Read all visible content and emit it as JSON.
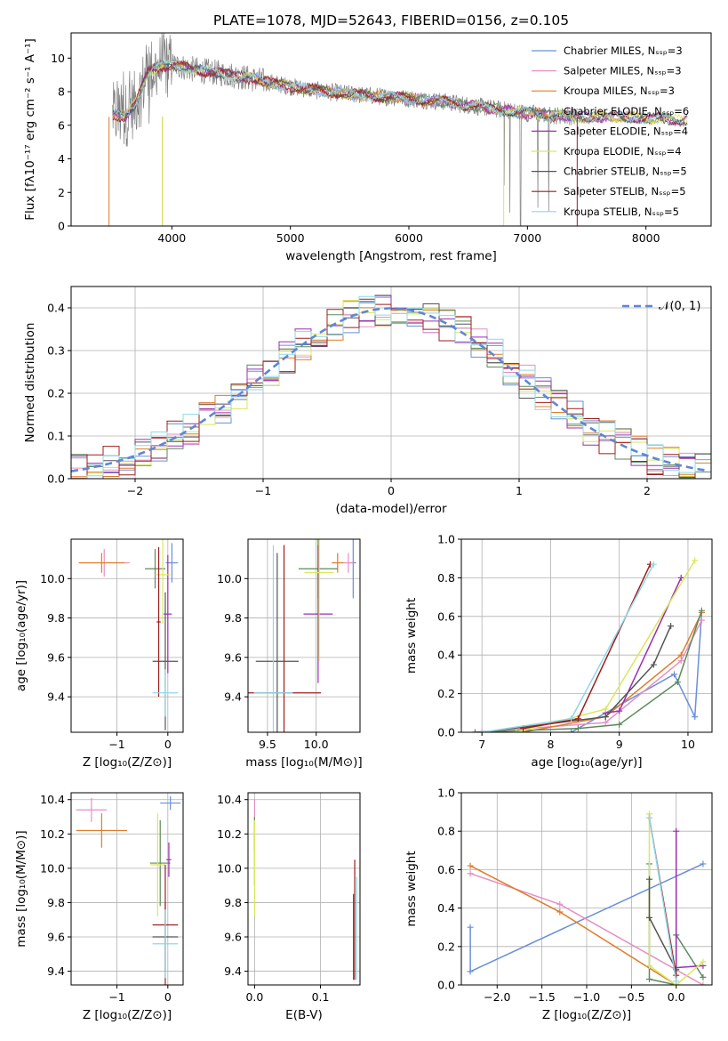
{
  "title": "PLATE=1078, MJD=52643, FIBERID=0156, z=0.105",
  "colors": {
    "chabrier_miles": "#6a8fd8",
    "salpeter_miles": "#e68fc4",
    "kroupa_miles": "#e07b28",
    "chabrier_elodie": "#5c8a5c",
    "salpeter_elodie": "#9b2fb0",
    "kroupa_elodie": "#d8e85a",
    "chabrier_stelib": "#555555",
    "salpeter_stelib": "#a01c1c",
    "kroupa_stelib": "#8ed8e6",
    "data_gray": "#808080"
  },
  "chart_data": [
    {
      "id": "spectrum",
      "type": "line",
      "xlabel": "wavelength [Angstrom, rest frame]",
      "ylabel": "Flux [fλ10⁻¹⁷ erg cm⁻² s⁻¹ A⁻¹]",
      "xlim": [
        3150,
        8550
      ],
      "ylim": [
        0,
        11.5
      ],
      "xticks": [
        4000,
        5000,
        6000,
        7000,
        8000
      ],
      "yticks": [
        0,
        2,
        4,
        6,
        8,
        10
      ],
      "legend_position": "upper-right",
      "legend": [
        "Chabrier MILES, Nₛₛₚ=3",
        "Salpeter MILES, Nₛₛₚ=3",
        "Kroupa MILES, Nₛₛₚ=3",
        "Chabrier ELODIE, Nₛₛₚ=6",
        "Salpeter ELODIE, Nₛₛₚ=4",
        "Kroupa ELODIE, Nₛₛₚ=4",
        "Chabrier STELIB, Nₛₛₚ=5",
        "Salpeter STELIB, Nₛₛₚ=5",
        "Kroupa STELIB, Nₛₛₚ=5"
      ],
      "continuum": {
        "x": [
          3500,
          3600,
          3700,
          3800,
          3900,
          4000,
          4200,
          4500,
          4800,
          5000,
          5300,
          5600,
          6000,
          6300,
          6600,
          6900,
          7200,
          7500,
          7800,
          8100,
          8350
        ],
        "y": [
          6.6,
          6.5,
          7.4,
          9.2,
          9.5,
          9.6,
          9.3,
          9.0,
          8.6,
          8.3,
          8.0,
          7.8,
          7.6,
          7.4,
          7.1,
          6.8,
          6.6,
          6.5,
          6.5,
          6.4,
          6.3
        ]
      }
    },
    {
      "id": "residuals",
      "type": "line",
      "xlabel": "(data-model)/error",
      "ylabel": "Normed distribution",
      "xlim": [
        -2.5,
        2.5
      ],
      "ylim": [
        0,
        0.45
      ],
      "xticks": [
        -2,
        -1,
        0,
        1,
        2
      ],
      "yticks": [
        0.0,
        0.1,
        0.2,
        0.3,
        0.4
      ],
      "legend_position": "upper-right",
      "legend": [
        "𝒩(0, 1)"
      ],
      "gaussian": {
        "mu": 0,
        "sigma": 1
      }
    },
    {
      "id": "age-vs-z",
      "type": "scatter",
      "xlabel": "Z [log₁₀(Z/Z⊙)]",
      "ylabel": "age  [log₁₀(age/yr)]",
      "xlim": [
        -1.9,
        0.3
      ],
      "ylim": [
        9.22,
        10.2
      ],
      "xticks": [
        -1,
        0
      ],
      "yticks": [
        9.4,
        9.6,
        9.8,
        10.0
      ],
      "points": [
        {
          "x": 0.08,
          "y": 10.08,
          "ex": 0.12,
          "ey": 0.1,
          "c": "chabrier_miles"
        },
        {
          "x": -1.25,
          "y": 10.08,
          "ex": 0.5,
          "ey": 0.07,
          "c": "salpeter_miles"
        },
        {
          "x": -1.3,
          "y": 10.08,
          "ex": 0.45,
          "ey": 0.05,
          "c": "kroupa_miles"
        },
        {
          "x": -0.25,
          "y": 10.05,
          "ex": 0.2,
          "ey": 0.1,
          "c": "chabrier_elodie"
        },
        {
          "x": 0.0,
          "y": 9.82,
          "ex": 0.08,
          "ey": 0.3,
          "c": "salpeter_elodie"
        },
        {
          "x": -0.1,
          "y": 10.02,
          "ex": 0.15,
          "ey": 0.25,
          "c": "kroupa_elodie"
        },
        {
          "x": -0.05,
          "y": 9.58,
          "ex": 0.25,
          "ey": 0.35,
          "c": "chabrier_stelib"
        },
        {
          "x": -0.18,
          "y": 9.78,
          "ex": 0.04,
          "ey": 0.38,
          "c": "salpeter_stelib"
        },
        {
          "x": -0.05,
          "y": 9.42,
          "ex": 0.25,
          "ey": 0.12,
          "c": "kroupa_stelib"
        }
      ]
    },
    {
      "id": "age-vs-mass",
      "type": "scatter",
      "xlabel": "mass [log₁₀(M/M⊙)]",
      "ylabel": "",
      "xlim": [
        9.3,
        10.45
      ],
      "ylim": [
        9.22,
        10.2
      ],
      "xticks": [
        9.5,
        10.0
      ],
      "yticks": [
        9.4,
        9.6,
        9.8,
        10.0
      ],
      "points": [
        {
          "x": 10.38,
          "y": 10.08,
          "ex": 0.03,
          "ey": 0.18,
          "c": "chabrier_miles"
        },
        {
          "x": 10.33,
          "y": 10.08,
          "ex": 0.05,
          "ey": 0.05,
          "c": "salpeter_miles"
        },
        {
          "x": 10.22,
          "y": 10.08,
          "ex": 0.06,
          "ey": 0.05,
          "c": "kroupa_miles"
        },
        {
          "x": 10.02,
          "y": 10.05,
          "ex": 0.2,
          "ey": 0.15,
          "c": "chabrier_elodie"
        },
        {
          "x": 10.02,
          "y": 9.82,
          "ex": 0.15,
          "ey": 0.35,
          "c": "salpeter_elodie"
        },
        {
          "x": 10.03,
          "y": 10.03,
          "ex": 0.15,
          "ey": 0.45,
          "c": "kroupa_elodie"
        },
        {
          "x": 9.6,
          "y": 9.58,
          "ex": 0.22,
          "ey": 0.55,
          "c": "chabrier_stelib"
        },
        {
          "x": 9.67,
          "y": 9.42,
          "ex": 0.38,
          "ey": 0.75,
          "c": "salpeter_stelib"
        },
        {
          "x": 9.56,
          "y": 9.42,
          "ex": 0.2,
          "ey": 0.75,
          "c": "kroupa_stelib"
        }
      ]
    },
    {
      "id": "weight-vs-age",
      "type": "line",
      "xlabel": "age  [log₁₀(age/yr)]",
      "ylabel": "mass weight",
      "xlim": [
        6.7,
        10.35
      ],
      "ylim": [
        0,
        1
      ],
      "xticks": [
        7,
        8,
        9,
        10
      ],
      "yticks": [
        0.0,
        0.2,
        0.4,
        0.6,
        0.8,
        1.0
      ],
      "series": [
        {
          "c": "chabrier_miles",
          "x": [
            8.3,
            9.8,
            10.1,
            10.2
          ],
          "y": [
            0.0,
            0.3,
            0.08,
            0.62
          ]
        },
        {
          "c": "salpeter_miles",
          "x": [
            6.9,
            8.8,
            9.9,
            10.2
          ],
          "y": [
            0.0,
            0.05,
            0.37,
            0.58
          ]
        },
        {
          "c": "kroupa_miles",
          "x": [
            7.6,
            8.8,
            9.9,
            10.2
          ],
          "y": [
            0.0,
            0.08,
            0.4,
            0.62
          ]
        },
        {
          "c": "chabrier_elodie",
          "x": [
            6.9,
            8.4,
            9.0,
            9.85,
            10.2
          ],
          "y": [
            0.0,
            0.02,
            0.04,
            0.26,
            0.63
          ]
        },
        {
          "c": "salpeter_elodie",
          "x": [
            8.8,
            9.0,
            9.9
          ],
          "y": [
            0.1,
            0.11,
            0.8
          ]
        },
        {
          "c": "kroupa_elodie",
          "x": [
            7.5,
            8.8,
            10.1
          ],
          "y": [
            0.0,
            0.12,
            0.89
          ]
        },
        {
          "c": "chabrier_stelib",
          "x": [
            7.0,
            8.8,
            9.5,
            9.75
          ],
          "y": [
            0.0,
            0.08,
            0.35,
            0.55
          ]
        },
        {
          "c": "salpeter_stelib",
          "x": [
            7.6,
            8.4,
            9.45
          ],
          "y": [
            0.02,
            0.07,
            0.87
          ]
        },
        {
          "c": "kroupa_stelib",
          "x": [
            7.0,
            8.3,
            9.5
          ],
          "y": [
            0.0,
            0.07,
            0.87
          ]
        }
      ]
    },
    {
      "id": "mass-vs-z",
      "type": "scatter",
      "xlabel": "Z [log₁₀(Z/Z⊙)]",
      "ylabel": "mass [log₁₀(M/M⊙)]",
      "xlim": [
        -1.9,
        0.3
      ],
      "ylim": [
        9.32,
        10.44
      ],
      "xticks": [
        -1,
        0
      ],
      "yticks": [
        9.4,
        9.6,
        9.8,
        10.0,
        10.2,
        10.4
      ],
      "points": [
        {
          "x": 0.05,
          "y": 10.38,
          "ex": 0.2,
          "ey": 0.04,
          "c": "chabrier_miles"
        },
        {
          "x": -1.5,
          "y": 10.34,
          "ex": 0.3,
          "ey": 0.07,
          "c": "salpeter_miles"
        },
        {
          "x": -1.3,
          "y": 10.22,
          "ex": 0.5,
          "ey": 0.1,
          "c": "kroupa_miles"
        },
        {
          "x": -0.15,
          "y": 10.03,
          "ex": 0.2,
          "ey": 0.25,
          "c": "chabrier_elodie"
        },
        {
          "x": 0.02,
          "y": 10.05,
          "ex": 0.05,
          "ey": 0.1,
          "c": "salpeter_elodie"
        },
        {
          "x": -0.2,
          "y": 10.02,
          "ex": 0.15,
          "ey": 0.3,
          "c": "kroupa_elodie"
        },
        {
          "x": -0.05,
          "y": 9.6,
          "ex": 0.25,
          "ey": 0.2,
          "c": "chabrier_stelib"
        },
        {
          "x": -0.05,
          "y": 9.67,
          "ex": 0.25,
          "ey": 0.35,
          "c": "salpeter_stelib"
        },
        {
          "x": -0.05,
          "y": 9.56,
          "ex": 0.25,
          "ey": 0.2,
          "c": "kroupa_stelib"
        }
      ]
    },
    {
      "id": "mass-vs-ebv",
      "type": "scatter",
      "xlabel": "E(B-V)",
      "ylabel": "",
      "xlim": [
        -0.01,
        0.16
      ],
      "ylim": [
        9.32,
        10.44
      ],
      "xticks": [
        0.0,
        0.1
      ],
      "yticks": [
        9.4,
        9.6,
        9.8,
        10.0,
        10.2,
        10.4
      ],
      "points": [
        {
          "x": 0.0,
          "y": 10.25,
          "ex": 0,
          "ey": 0.15,
          "c": "salpeter_miles"
        },
        {
          "x": 0.0,
          "y": 10.1,
          "ex": 0,
          "ey": 0.2,
          "c": "chabrier_elodie"
        },
        {
          "x": 0.0,
          "y": 10.0,
          "ex": 0,
          "ey": 0.28,
          "c": "kroupa_elodie"
        },
        {
          "x": 0.152,
          "y": 9.7,
          "ex": 0,
          "ey": 0.35,
          "c": "salpeter_stelib"
        },
        {
          "x": 0.155,
          "y": 9.65,
          "ex": 0,
          "ey": 0.3,
          "c": "kroupa_stelib"
        },
        {
          "x": 0.15,
          "y": 9.6,
          "ex": 0,
          "ey": 0.25,
          "c": "chabrier_stelib"
        }
      ]
    },
    {
      "id": "weight-vs-z",
      "type": "line",
      "xlabel": "Z [log₁₀(Z/Z⊙)]",
      "ylabel": "mass weight",
      "xlim": [
        -2.4,
        0.4
      ],
      "ylim": [
        0,
        1
      ],
      "xticks": [
        -2.0,
        -1.5,
        -1.0,
        -0.5,
        0.0
      ],
      "yticks": [
        0.0,
        0.2,
        0.4,
        0.6,
        0.8,
        1.0
      ],
      "series": [
        {
          "c": "chabrier_miles",
          "x": [
            -2.3,
            -2.3,
            0.3
          ],
          "y": [
            0.3,
            0.07,
            0.63
          ]
        },
        {
          "c": "salpeter_miles",
          "x": [
            -2.3,
            -1.3,
            0.3
          ],
          "y": [
            0.58,
            0.42,
            0.0
          ]
        },
        {
          "c": "kroupa_miles",
          "x": [
            -2.3,
            -1.3,
            0.0
          ],
          "y": [
            0.62,
            0.38,
            0.0
          ]
        },
        {
          "c": "chabrier_elodie",
          "x": [
            -0.3,
            -0.3,
            0.0,
            0.0,
            0.3
          ],
          "y": [
            0.63,
            0.03,
            0.0,
            0.26,
            0.04
          ]
        },
        {
          "c": "salpeter_elodie",
          "x": [
            0.0,
            0.0,
            0.3
          ],
          "y": [
            0.8,
            0.09,
            0.1
          ]
        },
        {
          "c": "kroupa_elodie",
          "x": [
            -0.3,
            -0.3,
            0.0,
            0.3
          ],
          "y": [
            0.89,
            0.1,
            0.0,
            0.12
          ]
        },
        {
          "c": "chabrier_stelib",
          "x": [
            -0.3,
            -0.3,
            0.0
          ],
          "y": [
            0.55,
            0.35,
            0.08
          ]
        },
        {
          "c": "salpeter_stelib",
          "x": [
            -0.3,
            0.0
          ],
          "y": [
            0.87,
            0.05
          ]
        },
        {
          "c": "kroupa_stelib",
          "x": [
            -0.3,
            0.0
          ],
          "y": [
            0.87,
            0.02
          ]
        }
      ]
    }
  ]
}
